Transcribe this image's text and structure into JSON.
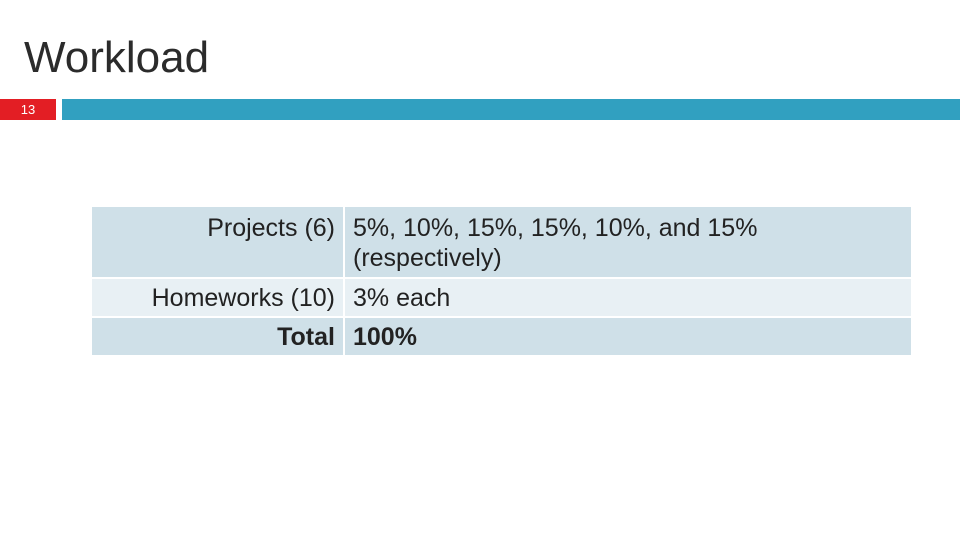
{
  "slide": {
    "title": "Workload",
    "number": "13"
  },
  "colors": {
    "number_badge": "#e31e24",
    "title_rule": "#31a0c0",
    "row_dark": "#cfe0e8",
    "row_light": "#e8f0f4"
  },
  "table": {
    "rows": [
      {
        "label": "Projects (6)",
        "value": "5%, 10%, 15%, 15%, 10%, and 15% (respectively)"
      },
      {
        "label": "Homeworks (10)",
        "value": "3% each"
      },
      {
        "label": "Total",
        "value": "100%"
      }
    ]
  }
}
